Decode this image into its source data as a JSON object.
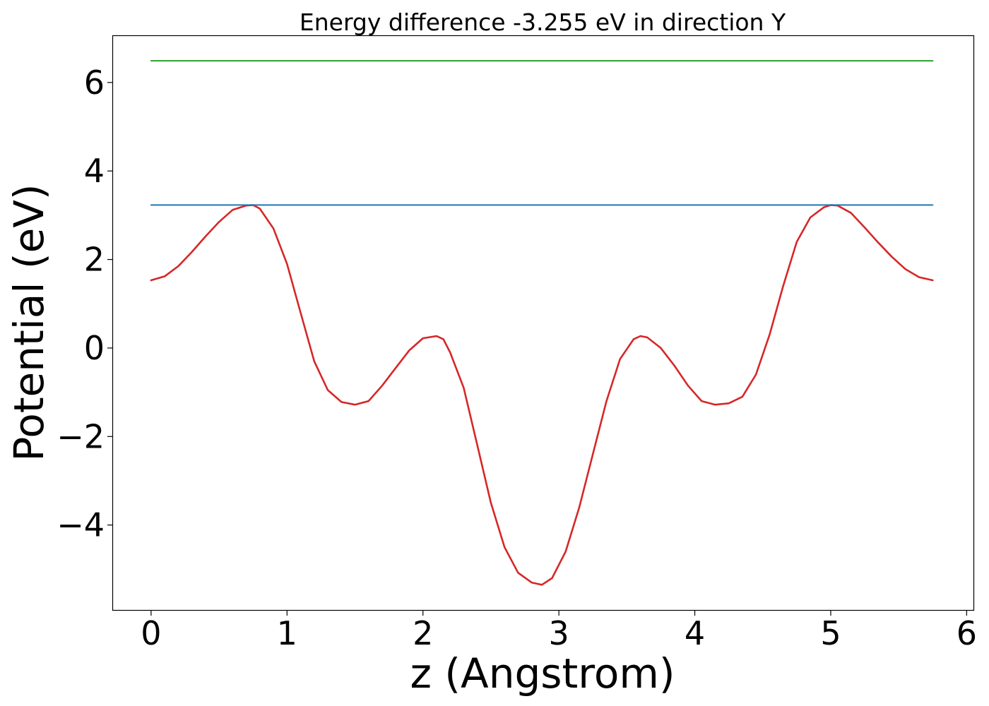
{
  "chart_data": {
    "type": "line",
    "title": "Energy difference -3.255 eV in direction Y",
    "xlabel": "z (Angstrom)",
    "ylabel": "Potential (eV)",
    "xlim": [
      -0.28,
      6.05
    ],
    "ylim": [
      -5.92,
      7.05
    ],
    "xticks": [
      0,
      1,
      2,
      3,
      4,
      5,
      6
    ],
    "xtick_labels": [
      "0",
      "1",
      "2",
      "3",
      "4",
      "5",
      "6"
    ],
    "yticks": [
      -4,
      -2,
      0,
      2,
      4,
      6
    ],
    "ytick_labels": [
      "−4",
      "−2",
      "0",
      "2",
      "4",
      "6"
    ],
    "grid": false,
    "series": [
      {
        "color": "#d62728",
        "x": [
          0,
          0.1,
          0.2,
          0.3,
          0.4,
          0.5,
          0.6,
          0.7,
          0.75,
          0.8,
          0.9,
          1.0,
          1.1,
          1.2,
          1.3,
          1.4,
          1.5,
          1.6,
          1.7,
          1.8,
          1.9,
          2.0,
          2.1,
          2.15,
          2.2,
          2.3,
          2.4,
          2.5,
          2.6,
          2.7,
          2.8,
          2.875,
          2.95,
          3.05,
          3.15,
          3.25,
          3.35,
          3.45,
          3.55,
          3.6,
          3.65,
          3.75,
          3.85,
          3.95,
          4.05,
          4.15,
          4.25,
          4.35,
          4.45,
          4.55,
          4.65,
          4.75,
          4.85,
          4.95,
          5.0,
          5.05,
          5.15,
          5.25,
          5.35,
          5.45,
          5.55,
          5.65,
          5.75
        ],
        "y": [
          1.53,
          1.62,
          1.85,
          2.17,
          2.52,
          2.85,
          3.12,
          3.22,
          3.23,
          3.15,
          2.7,
          1.9,
          0.8,
          -0.3,
          -0.95,
          -1.22,
          -1.28,
          -1.2,
          -0.85,
          -0.45,
          -0.05,
          0.22,
          0.27,
          0.2,
          -0.1,
          -0.9,
          -2.2,
          -3.5,
          -4.5,
          -5.08,
          -5.3,
          -5.35,
          -5.2,
          -4.6,
          -3.6,
          -2.4,
          -1.2,
          -0.25,
          0.2,
          0.27,
          0.24,
          0.0,
          -0.4,
          -0.85,
          -1.2,
          -1.28,
          -1.25,
          -1.1,
          -0.6,
          0.3,
          1.4,
          2.4,
          2.95,
          3.18,
          3.23,
          3.22,
          3.05,
          2.72,
          2.38,
          2.06,
          1.78,
          1.6,
          1.53
        ]
      },
      {
        "color": "#1f77b4",
        "x": [
          0,
          5.75
        ],
        "y": [
          3.23,
          3.23
        ]
      },
      {
        "color": "#2ca02c",
        "x": [
          0,
          5.75
        ],
        "y": [
          6.49,
          6.49
        ]
      }
    ]
  }
}
